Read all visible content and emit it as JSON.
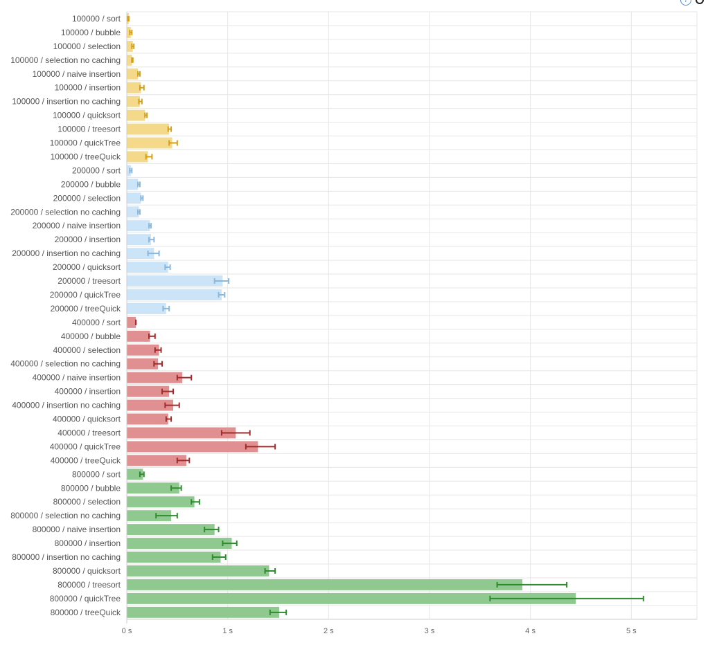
{
  "chart_data": {
    "type": "bar",
    "orientation": "horizontal",
    "title": "",
    "xlabel": "",
    "ylabel": "",
    "xlim": [
      0,
      5.65
    ],
    "grid": true,
    "legend": "none",
    "x_ticks": [
      {
        "value": 0,
        "label": "0 s"
      },
      {
        "value": 1,
        "label": "1 s"
      },
      {
        "value": 2,
        "label": "2 s"
      },
      {
        "value": 3,
        "label": "3 s"
      },
      {
        "value": 4,
        "label": "4 s"
      },
      {
        "value": 5,
        "label": "5 s"
      }
    ],
    "groups": [
      {
        "size": "100000",
        "fill": "#f5d98b",
        "error_color": "#d4a017"
      },
      {
        "size": "200000",
        "fill": "#cce4f7",
        "error_color": "#8ab8dc"
      },
      {
        "size": "400000",
        "fill": "#e09090",
        "error_color": "#a52a2a"
      },
      {
        "size": "800000",
        "fill": "#8fc98f",
        "error_color": "#2e8b2e"
      }
    ],
    "categories": [
      "100000 / sort",
      "100000 / bubble",
      "100000 / selection",
      "100000 / selection no caching",
      "100000 / naive insertion",
      "100000 / insertion",
      "100000 / insertion no caching",
      "100000 / quicksort",
      "100000 / treesort",
      "100000 / quickTree",
      "100000 / treeQuick",
      "200000 / sort",
      "200000 / bubble",
      "200000 / selection",
      "200000 / selection no caching",
      "200000 / naive insertion",
      "200000 / insertion",
      "200000 / insertion no caching",
      "200000 / quicksort",
      "200000 / treesort",
      "200000 / quickTree",
      "200000 / treeQuick",
      "400000 / sort",
      "400000 / bubble",
      "400000 / selection",
      "400000 / selection no caching",
      "400000 / naive insertion",
      "400000 / insertion",
      "400000 / insertion no caching",
      "400000 / quicksort",
      "400000 / treesort",
      "400000 / quickTree",
      "400000 / treeQuick",
      "800000 / sort",
      "800000 / bubble",
      "800000 / selection",
      "800000 / selection no caching",
      "800000 / naive insertion",
      "800000 / insertion",
      "800000 / insertion no caching",
      "800000 / quicksort",
      "800000 / treesort",
      "800000 / quickTree",
      "800000 / treeQuick"
    ],
    "values": [
      0.02,
      0.04,
      0.06,
      0.05,
      0.11,
      0.14,
      0.13,
      0.18,
      0.42,
      0.45,
      0.21,
      0.04,
      0.11,
      0.14,
      0.12,
      0.23,
      0.24,
      0.27,
      0.41,
      0.95,
      0.94,
      0.39,
      0.09,
      0.23,
      0.32,
      0.31,
      0.55,
      0.42,
      0.46,
      0.41,
      1.08,
      1.3,
      0.59,
      0.16,
      0.52,
      0.67,
      0.44,
      0.87,
      1.04,
      0.93,
      1.41,
      3.92,
      4.45,
      1.51
    ],
    "error_low": [
      0.01,
      0.03,
      0.05,
      0.05,
      0.11,
      0.13,
      0.12,
      0.18,
      0.41,
      0.42,
      0.19,
      0.03,
      0.11,
      0.14,
      0.11,
      0.22,
      0.22,
      0.21,
      0.38,
      0.87,
      0.91,
      0.36,
      0.09,
      0.22,
      0.28,
      0.27,
      0.5,
      0.35,
      0.38,
      0.39,
      0.94,
      1.18,
      0.5,
      0.13,
      0.44,
      0.64,
      0.29,
      0.77,
      0.95,
      0.85,
      1.37,
      3.67,
      3.6,
      1.42
    ],
    "error_high": [
      0.02,
      0.05,
      0.07,
      0.06,
      0.13,
      0.17,
      0.15,
      0.2,
      0.44,
      0.5,
      0.25,
      0.05,
      0.13,
      0.16,
      0.13,
      0.24,
      0.27,
      0.32,
      0.43,
      1.01,
      0.97,
      0.42,
      0.09,
      0.28,
      0.34,
      0.35,
      0.64,
      0.46,
      0.52,
      0.44,
      1.22,
      1.47,
      0.62,
      0.17,
      0.54,
      0.72,
      0.5,
      0.91,
      1.09,
      0.98,
      1.47,
      4.36,
      5.12,
      1.58
    ]
  }
}
